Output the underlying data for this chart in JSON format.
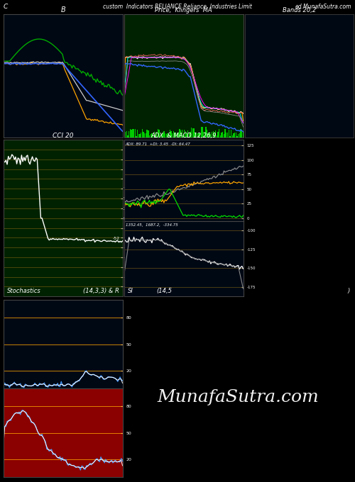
{
  "title_main": "custom  Indicators RELIANCE Reliance  Industries Limit",
  "title_right": "ed.MunafaSutra.com",
  "title_left": "C",
  "background_color": "#000000",
  "watermark": "MunafaSutra.com",
  "panel_labels": {
    "p1": "B",
    "p2": "Price,  Klingers  MA",
    "p3": "Bands 20,2",
    "p4": "CCI 20",
    "p5": "ADX  & MACD 12,26,9",
    "p6": "Stochastics",
    "p6b": "(14,3,3) & R",
    "p7": "SI",
    "p7b": "(14,5",
    "p7c": ")"
  },
  "adx_label": "ADX: 89.71  +DI: 3.45  -DI: 64.47",
  "macd_label": "1352.45,  1687.2,  -334.75",
  "grid_color": "#8B6914",
  "orange_line": "#FFA500",
  "white_line": "#FFFFFF",
  "blue_line": "#4499FF",
  "red_fill": "#CC0000"
}
